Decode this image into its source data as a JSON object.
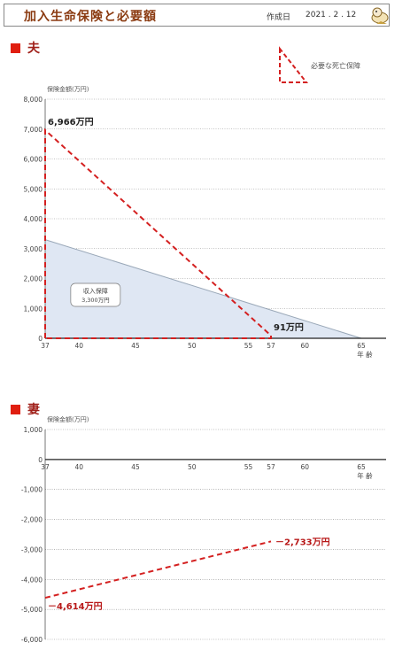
{
  "header": {
    "title": "加入生命保険と必要額",
    "date_label": "作成日",
    "date_value": "2021 . 2 . 12"
  },
  "legend": {
    "label": "必要な死亡保障"
  },
  "colors": {
    "need": "#d42020",
    "income": "#dfe7f3",
    "income_border": "#9aa8b8",
    "grid": "#888888"
  },
  "chart_data": [
    {
      "type": "area",
      "title": "夫",
      "ylabel": "保険金額(万円)",
      "xlabel": "年 齢",
      "ylim": [
        0,
        8000
      ],
      "yticks": [
        0,
        1000,
        2000,
        3000,
        4000,
        5000,
        6000,
        7000,
        8000
      ],
      "xticks": [
        37,
        40,
        45,
        50,
        55,
        57,
        60,
        65
      ],
      "series": [
        {
          "name": "必要な死亡保障",
          "style": "dashed",
          "x": [
            37,
            37,
            57,
            57
          ],
          "y": [
            0,
            6966,
            91,
            0
          ],
          "closed": true
        },
        {
          "name": "収入保障",
          "style": "area",
          "x": [
            37,
            65
          ],
          "y": [
            3300,
            0
          ]
        }
      ],
      "annotations": [
        {
          "text": "6,966万円",
          "x": 37,
          "y": 6966
        },
        {
          "text": "91万円",
          "x": 57,
          "y": 91
        },
        {
          "text": "収入保障",
          "subtext": "3,300万円",
          "x": 39.5,
          "y": 1600
        }
      ]
    },
    {
      "type": "line",
      "title": "妻",
      "ylabel": "保険金額(万円)",
      "xlabel": "年 齢",
      "ylim": [
        -6000,
        1000
      ],
      "yticks": [
        1000,
        0,
        -1000,
        -2000,
        -3000,
        -4000,
        -5000,
        -6000
      ],
      "xticks": [
        37,
        40,
        45,
        50,
        55,
        57,
        60,
        65
      ],
      "series": [
        {
          "name": "必要な死亡保障",
          "style": "dashed",
          "x": [
            37,
            57
          ],
          "y": [
            -4614,
            -2733
          ]
        }
      ],
      "annotations": [
        {
          "text": "－4,614万円",
          "x": 37,
          "y": -4614
        },
        {
          "text": "－2,733万円",
          "x": 57,
          "y": -2733
        }
      ]
    }
  ]
}
